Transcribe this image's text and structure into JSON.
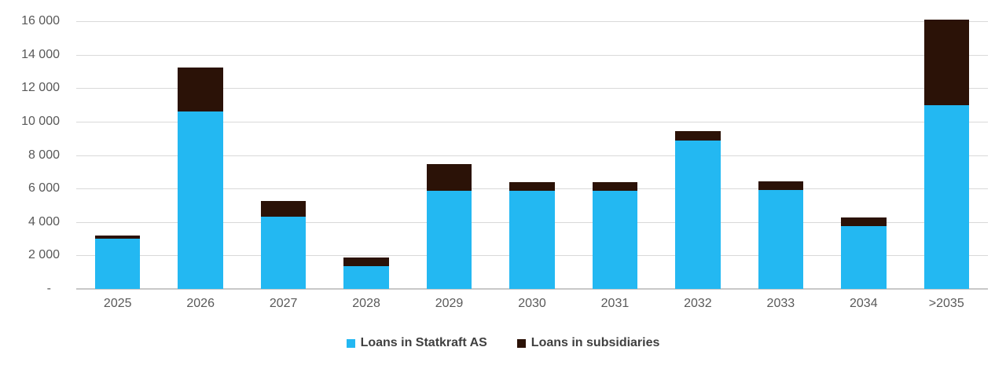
{
  "chart_data": {
    "type": "bar",
    "stacked": true,
    "title": "",
    "xlabel": "",
    "ylabel": "",
    "categories": [
      "2025",
      "2026",
      "2027",
      "2028",
      "2029",
      "2030",
      "2031",
      "2032",
      "2033",
      "2034",
      ">2035"
    ],
    "series": [
      {
        "name": "Loans in Statkraft AS",
        "color": "#23b8f2",
        "values": [
          3000,
          10600,
          4300,
          1350,
          5850,
          5850,
          5850,
          8850,
          5900,
          3750,
          11000
        ]
      },
      {
        "name": "Loans in subsidiaries",
        "color": "#2b1207",
        "values": [
          200,
          2650,
          950,
          550,
          1600,
          550,
          550,
          600,
          550,
          500,
          5100
        ]
      }
    ],
    "totals": [
      3200,
      13250,
      5250,
      1900,
      7450,
      6400,
      6400,
      9450,
      6450,
      4250,
      16100
    ],
    "ylim": [
      0,
      16000
    ],
    "y_tick_step": 2000,
    "y_tick_labels_top_to_bottom": [
      "16 000",
      "14 000",
      "12 000",
      "10 000",
      "8 000",
      "6 000",
      "4 000",
      "2 000",
      "-"
    ],
    "grid": true,
    "legend_position": "bottom-center",
    "colors": {
      "gridline": "#d9d9d9",
      "axis_line": "#c8c8c8",
      "tick_text": "#595959",
      "legend_text": "#404040",
      "background": "#ffffff"
    }
  }
}
